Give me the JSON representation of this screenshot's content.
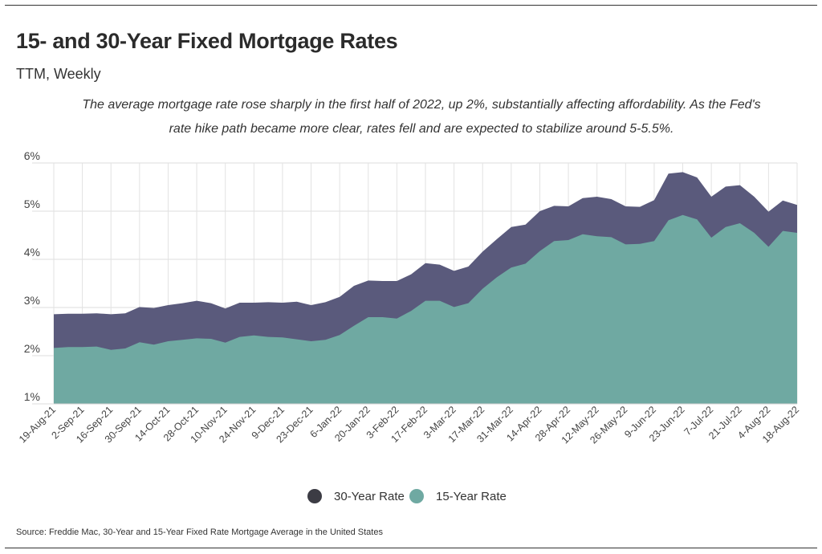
{
  "title": "15- and 30-Year Fixed Mortgage Rates",
  "subtitle": "TTM, Weekly",
  "annotation": "The average mortgage rate rose sharply in the first half of 2022, up 2%, substantially affecting affordability. As the Fed's rate hike path became more clear, rates fell and are expected to stabilize around 5-5.5%.",
  "source": "Source:  Freddie Mac, 30-Year  and 15-Year Fixed Rate Mortgage Average in the United States",
  "colors": {
    "series_30": "#5a5a7c",
    "series_15": "#6fa9a2",
    "legend_30": "#3c3c44",
    "legend_15": "#6fa9a2"
  },
  "chart_data": {
    "type": "area",
    "x": [
      "19-Aug-21",
      "26-Aug-21",
      "2-Sep-21",
      "9-Sep-21",
      "16-Sep-21",
      "23-Sep-21",
      "30-Sep-21",
      "7-Oct-21",
      "14-Oct-21",
      "21-Oct-21",
      "28-Oct-21",
      "4-Nov-21",
      "10-Nov-21",
      "18-Nov-21",
      "24-Nov-21",
      "2-Dec-21",
      "9-Dec-21",
      "16-Dec-21",
      "23-Dec-21",
      "30-Dec-21",
      "6-Jan-22",
      "13-Jan-22",
      "20-Jan-22",
      "27-Jan-22",
      "3-Feb-22",
      "10-Feb-22",
      "17-Feb-22",
      "24-Feb-22",
      "3-Mar-22",
      "10-Mar-22",
      "17-Mar-22",
      "24-Mar-22",
      "31-Mar-22",
      "7-Apr-22",
      "14-Apr-22",
      "21-Apr-22",
      "28-Apr-22",
      "5-May-22",
      "12-May-22",
      "19-May-22",
      "26-May-22",
      "2-Jun-22",
      "9-Jun-22",
      "16-Jun-22",
      "23-Jun-22",
      "30-Jun-22",
      "7-Jul-22",
      "14-Jul-22",
      "21-Jul-22",
      "28-Jul-22",
      "4-Aug-22",
      "11-Aug-22",
      "18-Aug-22"
    ],
    "tick_labels": [
      "19-Aug-21",
      "2-Sep-21",
      "16-Sep-21",
      "30-Sep-21",
      "14-Oct-21",
      "28-Oct-21",
      "10-Nov-21",
      "24-Nov-21",
      "9-Dec-21",
      "23-Dec-21",
      "6-Jan-22",
      "20-Jan-22",
      "3-Feb-22",
      "17-Feb-22",
      "3-Mar-22",
      "17-Mar-22",
      "31-Mar-22",
      "14-Apr-22",
      "28-Apr-22",
      "12-May-22",
      "26-May-22",
      "9-Jun-22",
      "23-Jun-22",
      "7-Jul-22",
      "21-Jul-22",
      "4-Aug-22",
      "18-Aug-22"
    ],
    "y_ticks": [
      "1%",
      "2%",
      "3%",
      "4%",
      "5%",
      "6%"
    ],
    "ylim": [
      1,
      6
    ],
    "grid": true,
    "legend": "bottom-center",
    "series": [
      {
        "name": "30-Year Rate",
        "values": [
          2.86,
          2.87,
          2.87,
          2.88,
          2.86,
          2.88,
          3.01,
          2.99,
          3.05,
          3.09,
          3.14,
          3.09,
          2.98,
          3.1,
          3.1,
          3.11,
          3.1,
          3.12,
          3.05,
          3.11,
          3.22,
          3.45,
          3.56,
          3.55,
          3.55,
          3.69,
          3.92,
          3.89,
          3.76,
          3.85,
          4.16,
          4.42,
          4.67,
          4.72,
          5.0,
          5.11,
          5.1,
          5.27,
          5.3,
          5.25,
          5.1,
          5.09,
          5.23,
          5.78,
          5.81,
          5.7,
          5.3,
          5.51,
          5.54,
          5.3,
          4.99,
          5.22,
          5.13
        ]
      },
      {
        "name": "15-Year Rate",
        "values": [
          2.16,
          2.18,
          2.18,
          2.19,
          2.12,
          2.15,
          2.28,
          2.23,
          2.3,
          2.33,
          2.36,
          2.35,
          2.27,
          2.39,
          2.42,
          2.39,
          2.38,
          2.34,
          2.3,
          2.33,
          2.43,
          2.62,
          2.8,
          2.8,
          2.77,
          2.93,
          3.14,
          3.14,
          3.01,
          3.09,
          3.39,
          3.63,
          3.83,
          3.91,
          4.17,
          4.38,
          4.4,
          4.52,
          4.48,
          4.46,
          4.31,
          4.32,
          4.38,
          4.81,
          4.92,
          4.83,
          4.45,
          4.67,
          4.75,
          4.55,
          4.26,
          4.59,
          4.55
        ]
      }
    ]
  },
  "legend": [
    {
      "name": "30-Year Rate",
      "marker_icon": "circle-marker"
    },
    {
      "name": "15-Year Rate",
      "marker_icon": "circle-marker"
    }
  ]
}
